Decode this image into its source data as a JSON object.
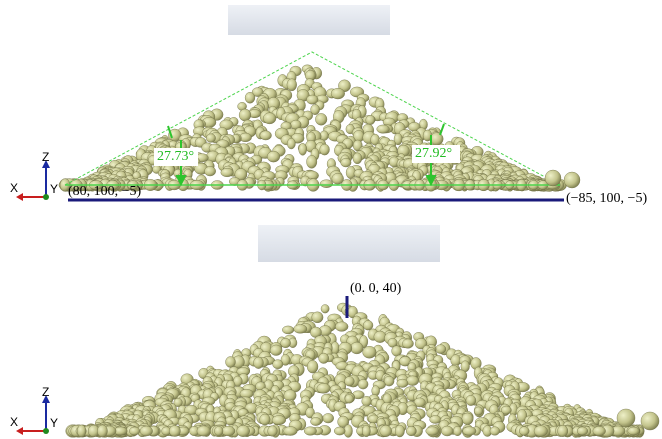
{
  "panels": [
    {
      "angle_labels": [
        "27.73°",
        "27.92°"
      ],
      "left_point": "(80, 100, −5)",
      "right_point": "(−85, 100, −5)",
      "axis_labels": [
        "Z",
        "X",
        "Y"
      ]
    },
    {
      "top_point": "(0. 0, 40)",
      "axis_labels": [
        "Z",
        "X",
        "Y"
      ]
    }
  ]
}
